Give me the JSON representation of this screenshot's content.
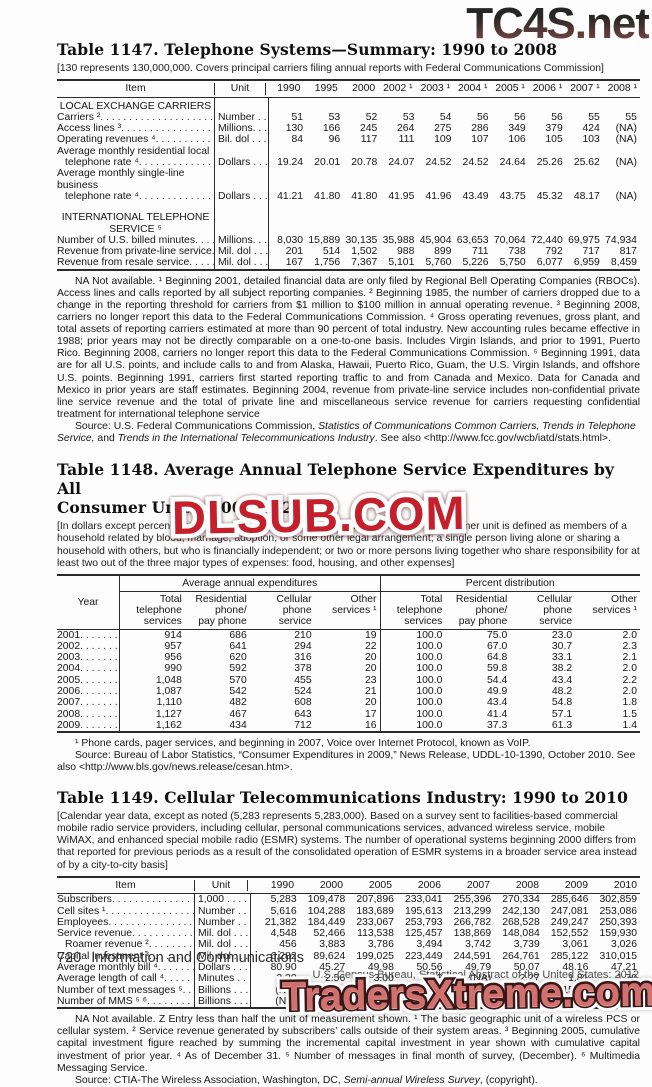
{
  "wm_top": {
    "text": "TC4S.net"
  },
  "stamp_mid": {
    "text": "DLSUB.COM"
  },
  "stamp_bottom": {
    "text": "TradersXtreme.com"
  },
  "colors": {
    "stamp_red": "#c4202b",
    "bottom_stamp_fill": "#d2706d",
    "bottom_stamp_outline": "#35181a",
    "top_wm_dark": "#262626",
    "top_wm_maroon": "#8a544e",
    "rule": "#2b2b2b"
  },
  "t1147": {
    "title": "Table 1147. Telephone Systems—Summary: 1990 to 2008",
    "note": "[130 represents 130,000,000. Covers principal carriers filing annual reports with Federal Communications Commission]",
    "col_item": "Item",
    "col_unit": "Unit",
    "years": [
      "1990",
      "1995",
      "2000",
      "2002 ¹",
      "2003 ¹",
      "2004 ¹",
      "2005 ¹",
      "2006 ¹",
      "2007 ¹",
      "2008 ¹"
    ],
    "rows": [
      {
        "type": "section",
        "lines": [
          "LOCAL EXCHANGE CARRIERS"
        ]
      },
      {
        "type": "data",
        "label": "Carriers ²",
        "unit": "Number . .",
        "values": [
          "51",
          "53",
          "52",
          "53",
          "54",
          "56",
          "56",
          "56",
          "55",
          "55"
        ]
      },
      {
        "type": "data",
        "label": "Access lines ³",
        "unit": "Millions. . .",
        "values": [
          "130",
          "166",
          "245",
          "264",
          "275",
          "286",
          "349",
          "379",
          "424",
          "(NA)"
        ]
      },
      {
        "type": "data",
        "label": "Operating revenues ⁴",
        "unit": "Bil. dol . . .",
        "values": [
          "84",
          "96",
          "117",
          "111",
          "109",
          "107",
          "106",
          "105",
          "103",
          "(NA)"
        ]
      },
      {
        "type": "data2",
        "lines": [
          "Average monthly residential local",
          "telephone rate ⁴"
        ],
        "unit": "Dollars . . .",
        "values": [
          "19.24",
          "20.01",
          "20.78",
          "24.07",
          "24.52",
          "24.52",
          "24.64",
          "25.26",
          "25.62",
          "(NA)"
        ]
      },
      {
        "type": "data2",
        "lines": [
          "Average monthly single-line business",
          "telephone rate ⁴"
        ],
        "unit": "Dollars . . .",
        "values": [
          "41.21",
          "41.80",
          "41.80",
          "41.95",
          "41.96",
          "43.49",
          "43.75",
          "45.32",
          "48.17",
          "(NA)"
        ]
      },
      {
        "type": "gap"
      },
      {
        "type": "section",
        "lines": [
          "INTERNATIONAL TELEPHONE",
          "SERVICE ⁵"
        ]
      },
      {
        "type": "data",
        "label": "Number of U.S. billed minutes",
        "unit": "Millions. . .",
        "values": [
          "8,030",
          "15,889",
          "30,135",
          "35,988",
          "45,904",
          "63,653",
          "70,064",
          "72,440",
          "69,975",
          "74,934"
        ]
      },
      {
        "type": "data",
        "label": "Revenue from private-line service",
        "unit": "Mil. dol . . .",
        "values": [
          "201",
          "514",
          "1,502",
          "988",
          "899",
          "711",
          "738",
          "792",
          "717",
          "817"
        ]
      },
      {
        "type": "data",
        "label": "Revenue from resale service",
        "unit": "Mil. dol . . .",
        "values": [
          "167",
          "1,756",
          "7,367",
          "5,101",
          "5,760",
          "5,226",
          "5,750",
          "6,077",
          "6,959",
          "8,459"
        ]
      }
    ],
    "footnote": "NA Not available. ¹ Beginning 2001, detailed financial data are only filed by Regional Bell Operating Companies (RBOCs). Access lines and calls reported by all subject reporting companies. ² Beginning 1985, the number of carriers dropped due to a change in the reporting threshold for carriers from $1 million to $100 million in annual operating revenue. ³ Beginning 2008, carriers no longer report this data to the Federal Communications Commission. ⁴ Gross operating revenues, gross plant, and total assets of reporting carriers estimated at more than 90 percent of total industry. New accounting rules became effective in 1988; prior years may not be directly comparable on a one-to-one basis. Includes Virgin Islands, and prior to 1991, Puerto Rico. Beginning 2008, carriers no longer report this data to the Federal Communications Commission. ⁵ Beginning 1991, data are for all U.S. points, and include calls to and from Alaska,  Hawaii, Puerto Rico, Guam, the U.S. Virgin Islands,  and offshore U.S. points. Beginning 1991, carriers first started reporting traffic to and from Canada and Mexico. Data for Canada and Mexico in prior years are staff estimates. Beginning 2004, revenue from  private-line service includes non-confidential private line service revenue and the total of private line and miscellaneous service revenue for carriers requesting confidential treatment for international telephone service",
    "source": [
      {
        "t": "Source: U.S. Federal Communications Commission, "
      },
      {
        "t": "Statistics of Communications Common Carriers, Trends in Telephone Service,",
        "i": true
      },
      {
        "t": " and "
      },
      {
        "t": "Trends in the International Telecommunications Industry",
        "i": true
      },
      {
        "t": ". See also <http://www.fcc.gov/wcb/iatd/stats.html>."
      }
    ]
  },
  "t1148": {
    "title_lines": [
      "Table 1148. Average Annual Telephone Service Expenditures by All",
      "Consumer Units: 2001 to 2009"
    ],
    "note": "[In dollars except percent distribution. Based on Consumer Expenditure Survey. A consumer unit is defined as members of a household related by blood, marriage, adoption, or some other legal arrangement; a single person living alone or sharing a household with others, but who is financially independent; or two or more persons living together who share responsibility for at least two out of the three major types of expenses: food, housing, and other expenses]",
    "col_year": "Year",
    "groups": [
      {
        "label": "Average annual expenditures",
        "cols": [
          "Total\ntelephone\nservices",
          "Residential\nphone/\npay phone",
          "Cellular\nphone\nservice",
          "Other\nservices ¹"
        ]
      },
      {
        "label": "Percent distribution",
        "cols": [
          "Total\ntelephone\nservices",
          "Residential\nphone/\npay phone",
          "Cellular\nphone\nservice",
          "Other\nservices ¹"
        ]
      }
    ],
    "rows": [
      {
        "year": "2001",
        "values": [
          "914",
          "686",
          "210",
          "19",
          "100.0",
          "75.0",
          "23.0",
          "2.0"
        ]
      },
      {
        "year": "2002",
        "values": [
          "957",
          "641",
          "294",
          "22",
          "100.0",
          "67.0",
          "30.7",
          "2.3"
        ]
      },
      {
        "year": "2003",
        "values": [
          "956",
          "620",
          "316",
          "20",
          "100.0",
          "64.8",
          "33.1",
          "2.1"
        ]
      },
      {
        "year": "2004",
        "values": [
          "990",
          "592",
          "378",
          "20",
          "100.0",
          "59.8",
          "38.2",
          "2.0"
        ]
      },
      {
        "year": "2005",
        "values": [
          "1,048",
          "570",
          "455",
          "23",
          "100.0",
          "54.4",
          "43.4",
          "2.2"
        ]
      },
      {
        "year": "2006",
        "values": [
          "1,087",
          "542",
          "524",
          "21",
          "100.0",
          "49.9",
          "48.2",
          "2.0"
        ]
      },
      {
        "year": "2007",
        "values": [
          "1,110",
          "482",
          "608",
          "20",
          "100.0",
          "43.4",
          "54.8",
          "1.8"
        ]
      },
      {
        "year": "2008",
        "values": [
          "1,127",
          "467",
          "643",
          "17",
          "100.0",
          "41.4",
          "57.1",
          "1.5"
        ]
      },
      {
        "year": "2009",
        "values": [
          "1,162",
          "434",
          "712",
          "16",
          "100.0",
          "37.3",
          "61.3",
          "1.4"
        ]
      }
    ],
    "footnote": "¹ Phone cards, pager services, and beginning in 2007, Voice over Internet Protocol, known as VoIP.",
    "source": [
      {
        "t": "Source: Bureau of Labor Statistics, “Consumer Expenditures in 2009,” News Release, UDDL-10-1390, October 2010. See also <http://www.bls.gov/news.release/cesan.htm>."
      }
    ]
  },
  "t1149": {
    "title": "Table 1149. Cellular Telecommunications Industry: 1990 to 2010",
    "note": "[Calendar year data, except as noted (5,283 represents 5,283,000). Based on a survey sent to facilities-based commercial mobile radio service providers, including cellular, personal communications services, advanced wireless service, mobile WiMAX, and enhanced special mobile radio (ESMR) systems. The number of operational systems beginning 2000 differs from that reported for previous periods as a  result of the consolidated operation of ESMR systems in a broader service area instead of by a city-to-city basis]",
    "col_item": "Item",
    "col_unit": "Unit",
    "years": [
      "1990",
      "2000",
      "2005",
      "2006",
      "2007",
      "2008",
      "2009",
      "2010"
    ],
    "rows": [
      {
        "type": "data",
        "label": "Subscribers",
        "unit": "1,000 . . . .",
        "values": [
          "5,283",
          "109,478",
          "207,896",
          "233,041",
          "255,396",
          "270,334",
          "285,646",
          "302,859"
        ]
      },
      {
        "type": "data",
        "label": "Cell sites ¹",
        "unit": "Number . .",
        "values": [
          "5,616",
          "104,288",
          "183,689",
          "195,613",
          "213,299",
          "242,130",
          "247,081",
          "253,086"
        ]
      },
      {
        "type": "data",
        "label": "Employees",
        "unit": "Number . .",
        "values": [
          "21,382",
          "184,449",
          "233,067",
          "253,793",
          "266,782",
          "268,528",
          "249,247",
          "250,393"
        ]
      },
      {
        "type": "data",
        "label": "Service revenue",
        "unit": "Mil. dol . . .",
        "values": [
          "4,548",
          "52,466",
          "113,538",
          "125,457",
          "138,869",
          "148,084",
          "152,552",
          "159,930"
        ]
      },
      {
        "type": "data",
        "label": "Roamer revenue ²",
        "indent": true,
        "unit": "Mil. dol . . .",
        "values": [
          "456",
          "3,883",
          "3,786",
          "3,494",
          "3,742",
          "3,739",
          "3,061",
          "3,026"
        ]
      },
      {
        "type": "data",
        "label": "Capital investment ³",
        "unit": "Mil. dol . . .",
        "values": [
          "6,282",
          "89,624",
          "199,025",
          "223,449",
          "244,591",
          "264,761",
          "285,122",
          "310,015"
        ]
      },
      {
        "type": "data",
        "label": "Average monthly bill ⁴",
        "unit": "Dollars . . .",
        "values": [
          "80.90",
          "45.27",
          "49.98",
          "50.56",
          "49.79",
          "50.07",
          "48.16",
          "47.21"
        ]
      },
      {
        "type": "data",
        "label": "Average length of call ⁴",
        "unit": "Minutes . .",
        "values": [
          "2.20",
          "2.56",
          "3.00",
          "3.03",
          "(NA)",
          "2.27",
          "1.81",
          "1.79"
        ]
      },
      {
        "type": "data",
        "label": "Number of text messages ⁵",
        "unit": "Billions . . .",
        "values": [
          "(NA)",
          "(Z)",
          "9.8",
          "18.7",
          "48.1",
          "110.4",
          "152.7",
          "187.7"
        ]
      },
      {
        "type": "data",
        "label": "Number of MMS ⁵ ⁶",
        "unit": "Billions . . .",
        "values": [
          "(NA)",
          "(NA)",
          "0.2",
          "0.3",
          "0.8",
          "1.6",
          "5.1",
          "4.3"
        ]
      }
    ],
    "footnote": "NA Not available. Z Entry less than half the unit of measurement shown. ¹ The basic geographic unit of a wireless PCS or cellular system.  ² Service revenue generated by subscribers’ calls outside of their  system areas. ³ Beginning 2005, cumulative capital investment figure reached by summing the incremental capital investment in year shown with cumulative capital investment of prior year. ⁴ As of December 31. ⁵ Number of messages in final month of survey, (December). ⁶ Multimedia Messaging Service.",
    "source": [
      {
        "t": "Source: CTIA-The Wireless Association, Washington, DC, "
      },
      {
        "t": "Semi-annual Wireless Survey",
        "i": true
      },
      {
        "t": ", (copyright)."
      }
    ]
  },
  "footer": {
    "page": "720",
    "section": "Information and Communications",
    "census_line": "U.S. Census Bureau, Statistical Abstract of the United States: 2012"
  }
}
